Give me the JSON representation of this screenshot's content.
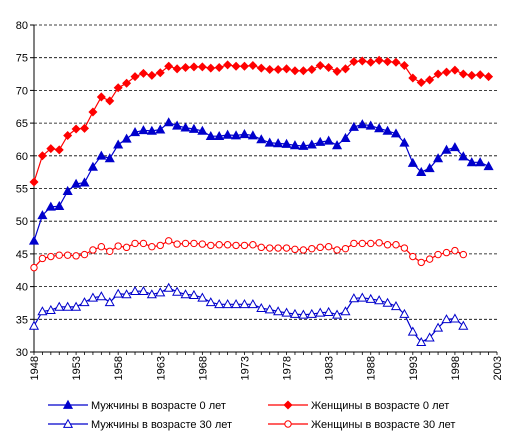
{
  "chart_data": {
    "type": "line",
    "title": "",
    "xlabel": "",
    "ylabel": "",
    "xlim": [
      1948,
      2003
    ],
    "ylim": [
      30,
      80
    ],
    "x_ticks": [
      "1948",
      "1953",
      "1958",
      "1963",
      "1968",
      "1973",
      "1978",
      "1983",
      "1988",
      "1993",
      "1998",
      "2003"
    ],
    "y_ticks": [
      "30",
      "35",
      "40",
      "45",
      "50",
      "55",
      "60",
      "65",
      "70",
      "75",
      "80"
    ],
    "grid": "horizontal dashed",
    "legend_position": "bottom",
    "series": [
      {
        "name": "Мужчины в возрасте 0 лет",
        "color": "#0000CC",
        "marker": "filled-triangle",
        "x": [
          1948,
          1949,
          1950,
          1951,
          1952,
          1953,
          1954,
          1955,
          1956,
          1957,
          1958,
          1959,
          1960,
          1961,
          1962,
          1963,
          1964,
          1965,
          1966,
          1967,
          1968,
          1969,
          1970,
          1971,
          1972,
          1973,
          1974,
          1975,
          1976,
          1977,
          1978,
          1979,
          1980,
          1981,
          1982,
          1983,
          1984,
          1985,
          1986,
          1987,
          1988,
          1989,
          1990,
          1991,
          1992,
          1993,
          1994,
          1995,
          1996,
          1997,
          1998,
          1999,
          2000,
          2001,
          2002
        ],
        "y": [
          47.0,
          50.9,
          52.2,
          52.3,
          54.6,
          55.7,
          55.9,
          58.3,
          60.0,
          59.6,
          61.7,
          62.6,
          63.6,
          63.9,
          63.8,
          64.0,
          65.1,
          64.6,
          64.3,
          64.1,
          63.8,
          63.0,
          63.0,
          63.2,
          63.1,
          63.3,
          63.1,
          62.5,
          62.0,
          61.9,
          61.8,
          61.6,
          61.5,
          61.7,
          62.1,
          62.3,
          61.6,
          62.7,
          64.4,
          64.8,
          64.6,
          64.2,
          63.8,
          63.4,
          62.0,
          58.9,
          57.5,
          58.1,
          59.6,
          60.9,
          61.3,
          59.9,
          59.0,
          59.0,
          58.4
        ]
      },
      {
        "name": "Женщины в возрасте 0 лет",
        "color": "#FF0000",
        "marker": "filled-diamond",
        "x": [
          1948,
          1949,
          1950,
          1951,
          1952,
          1953,
          1954,
          1955,
          1956,
          1957,
          1958,
          1959,
          1960,
          1961,
          1962,
          1963,
          1964,
          1965,
          1966,
          1967,
          1968,
          1969,
          1970,
          1971,
          1972,
          1973,
          1974,
          1975,
          1976,
          1977,
          1978,
          1979,
          1980,
          1981,
          1982,
          1983,
          1984,
          1985,
          1986,
          1987,
          1988,
          1989,
          1990,
          1991,
          1992,
          1993,
          1994,
          1995,
          1996,
          1997,
          1998,
          1999,
          2000,
          2001,
          2002
        ],
        "y": [
          56.0,
          60.0,
          61.1,
          60.9,
          63.1,
          64.1,
          64.2,
          66.7,
          69.0,
          68.4,
          70.4,
          71.1,
          72.1,
          72.6,
          72.3,
          72.7,
          73.7,
          73.3,
          73.5,
          73.6,
          73.6,
          73.4,
          73.5,
          73.9,
          73.7,
          73.7,
          73.8,
          73.4,
          73.2,
          73.2,
          73.3,
          73.0,
          73.0,
          73.2,
          73.8,
          73.5,
          72.9,
          73.3,
          74.4,
          74.5,
          74.3,
          74.6,
          74.4,
          74.3,
          73.8,
          71.9,
          71.2,
          71.6,
          72.5,
          72.8,
          73.1,
          72.5,
          72.3,
          72.4,
          72.1
        ]
      },
      {
        "name": "Мужчины в возрасте 30 лет",
        "color": "#0000CC",
        "marker": "hollow-triangle",
        "x": [
          1948,
          1949,
          1950,
          1951,
          1952,
          1953,
          1954,
          1955,
          1956,
          1957,
          1958,
          1959,
          1960,
          1961,
          1962,
          1963,
          1964,
          1965,
          1966,
          1967,
          1968,
          1969,
          1970,
          1971,
          1972,
          1973,
          1974,
          1975,
          1976,
          1977,
          1978,
          1979,
          1980,
          1981,
          1982,
          1983,
          1984,
          1985,
          1986,
          1987,
          1988,
          1989,
          1990,
          1991,
          1992,
          1993,
          1994,
          1995,
          1996,
          1997,
          1998,
          1999
        ],
        "y": [
          34.0,
          36.2,
          36.4,
          36.9,
          36.9,
          36.9,
          37.6,
          38.3,
          38.5,
          37.6,
          38.9,
          38.8,
          39.3,
          39.3,
          38.8,
          39.1,
          39.8,
          39.2,
          38.8,
          38.7,
          38.3,
          37.6,
          37.3,
          37.3,
          37.3,
          37.3,
          37.3,
          36.7,
          36.5,
          36.2,
          36.0,
          35.8,
          35.7,
          35.8,
          36.0,
          36.1,
          35.7,
          36.2,
          38.2,
          38.3,
          38.1,
          37.9,
          37.5,
          37.0,
          35.8,
          33.1,
          31.5,
          32.2,
          33.7,
          35.0,
          35.1,
          34.0
        ]
      },
      {
        "name": "Женщины в возрасте 30 лет",
        "color": "#FF0000",
        "marker": "hollow-circle",
        "x": [
          1948,
          1949,
          1950,
          1951,
          1952,
          1953,
          1954,
          1955,
          1956,
          1957,
          1958,
          1959,
          1960,
          1961,
          1962,
          1963,
          1964,
          1965,
          1966,
          1967,
          1968,
          1969,
          1970,
          1971,
          1972,
          1973,
          1974,
          1975,
          1976,
          1977,
          1978,
          1979,
          1980,
          1981,
          1982,
          1983,
          1984,
          1985,
          1986,
          1987,
          1988,
          1989,
          1990,
          1991,
          1992,
          1993,
          1994,
          1995,
          1996,
          1997,
          1998,
          1999
        ],
        "y": [
          42.9,
          44.3,
          44.6,
          44.8,
          44.8,
          44.7,
          44.9,
          45.6,
          46.1,
          45.4,
          46.2,
          46.0,
          46.6,
          46.6,
          46.1,
          46.3,
          47.0,
          46.5,
          46.6,
          46.6,
          46.5,
          46.3,
          46.4,
          46.4,
          46.3,
          46.3,
          46.4,
          46.0,
          45.9,
          45.9,
          45.9,
          45.7,
          45.6,
          45.8,
          46.0,
          46.1,
          45.6,
          45.8,
          46.6,
          46.6,
          46.6,
          46.7,
          46.4,
          46.4,
          45.9,
          44.6,
          43.7,
          44.2,
          44.9,
          45.2,
          45.5,
          44.9
        ]
      }
    ]
  }
}
